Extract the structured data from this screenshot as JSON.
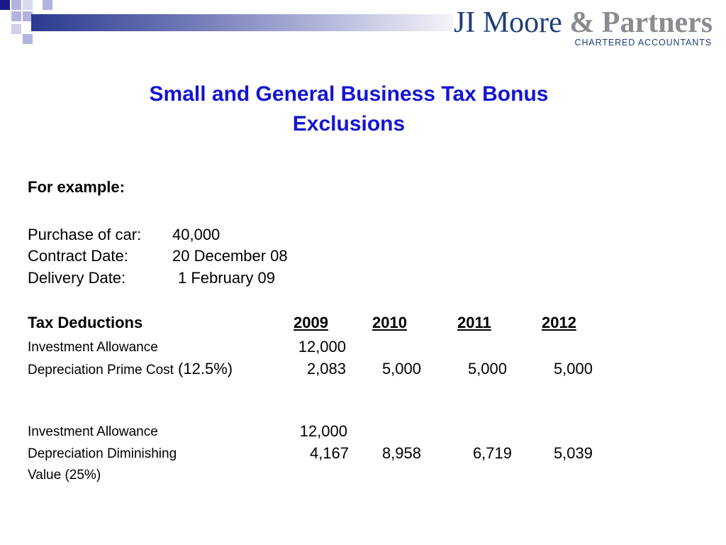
{
  "logo": {
    "name_part1": "JI Moore",
    "name_part2": "& Partners",
    "subtitle": "CHARTERED ACCOUNTANTS"
  },
  "colors": {
    "title": "#1414d2",
    "brand_navy": "#1f3d7a",
    "brand_grey": "#8a8c92",
    "deco_square_dark": "#1a1a8c",
    "deco_square_light": "#b3b3e0"
  },
  "slide": {
    "title_line1": "Small and General Business Tax Bonus",
    "title_line2": "Exclusions",
    "example_heading": "For example:",
    "details": [
      {
        "label": "Purchase of car:",
        "value": "40,000"
      },
      {
        "label": "Contract Date:",
        "value": "20 December 08"
      },
      {
        "label": "Delivery Date:",
        "value": "1 February 09"
      }
    ],
    "table": {
      "heading": "Tax Deductions",
      "years": [
        "2009",
        "2010",
        "2011",
        "2012"
      ],
      "prime_cost": {
        "investment_allowance_label": "Investment Allowance",
        "investment_allowance_value": "12,000",
        "depreciation_label": "Depreciation Prime Cost",
        "depreciation_rate": "(12.5%)",
        "depreciation_values": [
          "2,083",
          "5,000",
          "5,000",
          "5,000"
        ]
      },
      "diminishing": {
        "investment_allowance_label": "Investment Allowance",
        "investment_allowance_value": "12,000",
        "depreciation_label_line1": "Depreciation Diminishing",
        "depreciation_label_line2": "Value (25%)",
        "depreciation_values": [
          "4,167",
          "8,958",
          "6,719",
          "5,039"
        ]
      }
    }
  }
}
